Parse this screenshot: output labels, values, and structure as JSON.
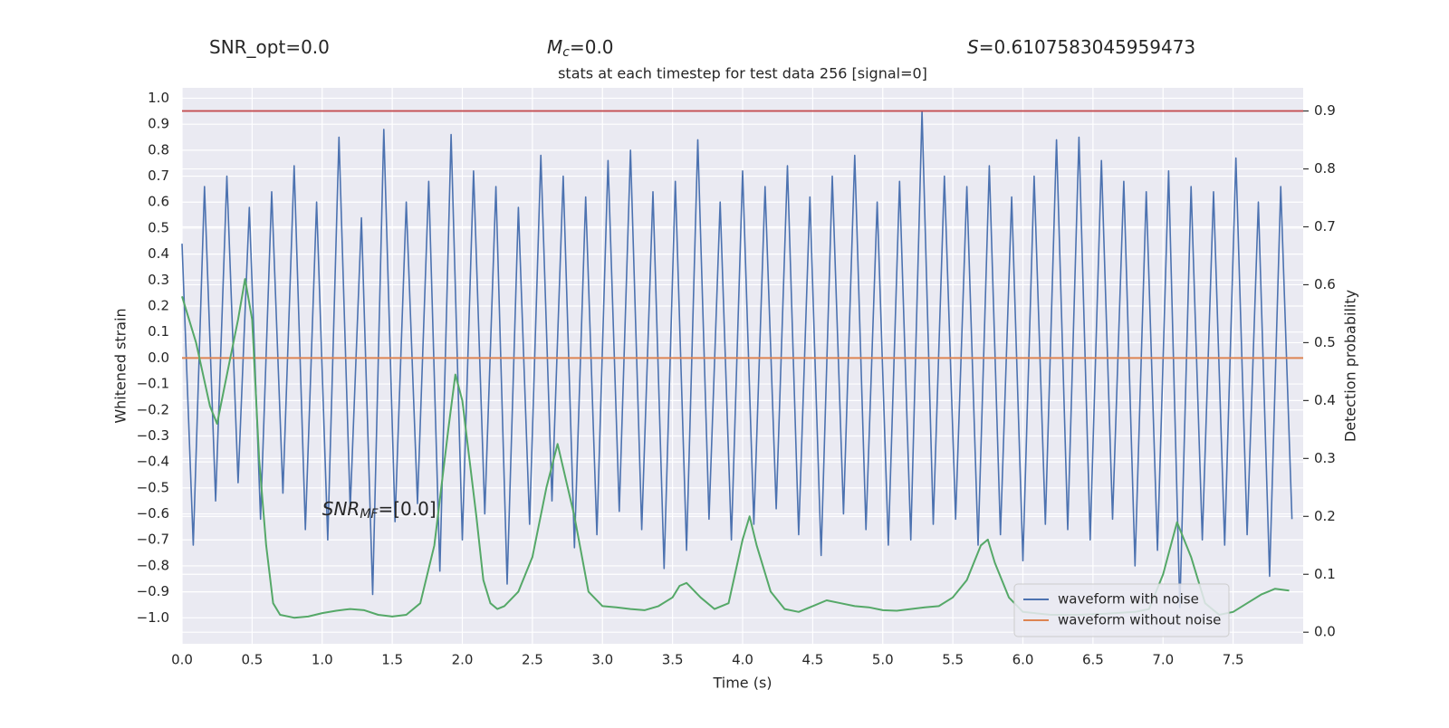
{
  "chart_data": {
    "type": "line",
    "title": "stats at each timestep for test data 256 [signal=0]",
    "annotations": [
      {
        "text": "SNR_opt=0.0"
      },
      {
        "var": "M",
        "sub": "c",
        "rest": "=0.0"
      },
      {
        "var": "S",
        "rest": "=0.6107583045959473"
      },
      {
        "var": "SNR",
        "sub": "MF",
        "rest": "=[0.0]"
      }
    ],
    "xlabel": "Time (s)",
    "ylabel": "Whitened strain",
    "y2label": "Detection probability",
    "xlim": [
      0,
      8
    ],
    "ylim": [
      -1.1,
      1.04
    ],
    "y2lim": [
      -0.02,
      0.94
    ],
    "xticks": [
      {
        "value": 0,
        "label": "0.0"
      },
      0.5,
      {
        "value": 1,
        "label": "1.0"
      },
      1.5,
      {
        "value": 2,
        "label": "2.0"
      },
      2.5,
      {
        "value": 3,
        "label": "3.0"
      },
      3.5,
      {
        "value": 4,
        "label": "4.0"
      },
      4.5,
      {
        "value": 5,
        "label": "5.0"
      },
      5.5,
      {
        "value": 6,
        "label": "6.0"
      },
      6.5,
      {
        "value": 7,
        "label": "7.0"
      },
      7.5
    ],
    "yticks": [
      {
        "value": -1,
        "label": "−1.0"
      },
      {
        "value": -0.9,
        "label": "−0.9"
      },
      {
        "value": -0.8,
        "label": "−0.8"
      },
      {
        "value": -0.7,
        "label": "−0.7"
      },
      {
        "value": -0.6,
        "label": "−0.6"
      },
      {
        "value": -0.5,
        "label": "−0.5"
      },
      {
        "value": -0.4,
        "label": "−0.4"
      },
      {
        "value": -0.3,
        "label": "−0.3"
      },
      {
        "value": -0.2,
        "label": "−0.2"
      },
      {
        "value": -0.1,
        "label": "−0.1"
      },
      {
        "value": 0,
        "label": "0.0"
      },
      0.1,
      0.2,
      0.3,
      0.4,
      0.5,
      0.6,
      0.7,
      0.8,
      0.9,
      {
        "value": 1,
        "label": "1.0"
      }
    ],
    "y2ticks": [
      {
        "value": 0,
        "label": "0.0"
      },
      0.1,
      0.2,
      0.3,
      0.4,
      0.5,
      0.6,
      0.7,
      0.8,
      0.9
    ],
    "grid": true,
    "legend": "lower right",
    "hlines": [
      {
        "value": 0.9,
        "axis": "y2",
        "color": "#c44e52"
      }
    ],
    "series": [
      {
        "name": "waveform with noise",
        "color": "#4c72b0",
        "x": [
          0,
          0.08,
          0.16,
          0.24,
          0.32,
          0.4,
          0.48,
          0.56,
          0.64,
          0.72,
          0.8,
          0.88,
          0.96,
          1.04,
          1.12,
          1.2,
          1.28,
          1.36,
          1.44,
          1.52,
          1.6,
          1.68,
          1.76,
          1.84,
          1.92,
          2,
          2.08,
          2.16,
          2.24,
          2.32,
          2.4,
          2.48,
          2.56,
          2.64,
          2.72,
          2.8,
          2.88,
          2.96,
          3.04,
          3.12,
          3.2,
          3.28,
          3.36,
          3.44,
          3.52,
          3.6,
          3.68,
          3.76,
          3.84,
          3.92,
          4,
          4.08,
          4.16,
          4.24,
          4.32,
          4.4,
          4.48,
          4.56,
          4.64,
          4.72,
          4.8,
          4.88,
          4.96,
          5.04,
          5.12,
          5.2,
          5.28,
          5.36,
          5.44,
          5.52,
          5.6,
          5.68,
          5.76,
          5.84,
          5.92,
          6,
          6.08,
          6.16,
          6.24,
          6.32,
          6.4,
          6.48,
          6.56,
          6.64,
          6.72,
          6.8,
          6.88,
          6.96,
          7.04,
          7.12,
          7.2,
          7.28,
          7.36,
          7.44,
          7.52,
          7.6,
          7.68,
          7.76,
          7.84,
          7.92
        ],
        "values": [
          0.44,
          -0.72,
          0.66,
          -0.55,
          0.7,
          -0.48,
          0.58,
          -0.62,
          0.64,
          -0.52,
          0.74,
          -0.66,
          0.6,
          -0.7,
          0.85,
          -0.58,
          0.54,
          -0.91,
          0.88,
          -0.63,
          0.6,
          -0.56,
          0.68,
          -0.82,
          0.86,
          -0.7,
          0.72,
          -0.6,
          0.66,
          -0.87,
          0.58,
          -0.64,
          0.78,
          -0.55,
          0.7,
          -0.73,
          0.62,
          -0.68,
          0.76,
          -0.59,
          0.8,
          -0.66,
          0.64,
          -0.81,
          0.68,
          -0.74,
          0.84,
          -0.62,
          0.6,
          -0.7,
          0.72,
          -0.64,
          0.66,
          -0.58,
          0.74,
          -0.68,
          0.62,
          -0.76,
          0.7,
          -0.6,
          0.78,
          -0.66,
          0.6,
          -0.72,
          0.68,
          -0.7,
          0.95,
          -0.64,
          0.7,
          -0.62,
          0.66,
          -0.72,
          0.74,
          -0.68,
          0.62,
          -0.78,
          0.7,
          -0.64,
          0.84,
          -0.66,
          0.85,
          -0.7,
          0.76,
          -0.62,
          0.68,
          -0.8,
          0.64,
          -0.74,
          0.72,
          -0.96,
          0.66,
          -0.7,
          0.64,
          -0.72,
          0.77,
          -0.68,
          0.6,
          -0.84,
          0.66,
          -0.62
        ]
      },
      {
        "name": "waveform without noise",
        "color": "#dd8452",
        "x": [
          0,
          8
        ],
        "values": [
          0,
          0
        ]
      },
      {
        "color": "#55a868",
        "axis": "y2",
        "x": [
          0,
          0.1,
          0.2,
          0.25,
          0.3,
          0.4,
          0.45,
          0.5,
          0.55,
          0.6,
          0.65,
          0.7,
          0.8,
          0.9,
          1,
          1.1,
          1.2,
          1.3,
          1.4,
          1.5,
          1.6,
          1.7,
          1.8,
          1.9,
          1.95,
          2,
          2.1,
          2.15,
          2.2,
          2.25,
          2.3,
          2.4,
          2.5,
          2.6,
          2.68,
          2.8,
          2.9,
          3,
          3.1,
          3.2,
          3.3,
          3.4,
          3.5,
          3.55,
          3.6,
          3.7,
          3.8,
          3.9,
          4,
          4.05,
          4.1,
          4.2,
          4.3,
          4.4,
          4.5,
          4.6,
          4.7,
          4.8,
          4.9,
          5,
          5.1,
          5.2,
          5.3,
          5.4,
          5.5,
          5.6,
          5.7,
          5.75,
          5.8,
          5.9,
          6,
          6.2,
          6.4,
          6.6,
          6.8,
          6.9,
          7,
          7.1,
          7.2,
          7.3,
          7.4,
          7.5,
          7.6,
          7.7,
          7.8,
          7.9
        ],
        "values": [
          0.58,
          0.5,
          0.39,
          0.36,
          0.42,
          0.54,
          0.61,
          0.54,
          0.3,
          0.15,
          0.05,
          0.03,
          0.025,
          0.027,
          0.033,
          0.037,
          0.04,
          0.038,
          0.03,
          0.027,
          0.03,
          0.05,
          0.15,
          0.35,
          0.445,
          0.4,
          0.2,
          0.09,
          0.05,
          0.04,
          0.045,
          0.07,
          0.13,
          0.25,
          0.325,
          0.2,
          0.07,
          0.045,
          0.043,
          0.04,
          0.038,
          0.045,
          0.06,
          0.08,
          0.085,
          0.06,
          0.04,
          0.05,
          0.16,
          0.2,
          0.15,
          0.07,
          0.04,
          0.035,
          0.045,
          0.055,
          0.05,
          0.045,
          0.043,
          0.038,
          0.037,
          0.04,
          0.043,
          0.045,
          0.06,
          0.09,
          0.15,
          0.16,
          0.12,
          0.06,
          0.035,
          0.03,
          0.03,
          0.032,
          0.035,
          0.04,
          0.1,
          0.19,
          0.13,
          0.05,
          0.03,
          0.035,
          0.05,
          0.065,
          0.075,
          0.072
        ]
      }
    ]
  }
}
